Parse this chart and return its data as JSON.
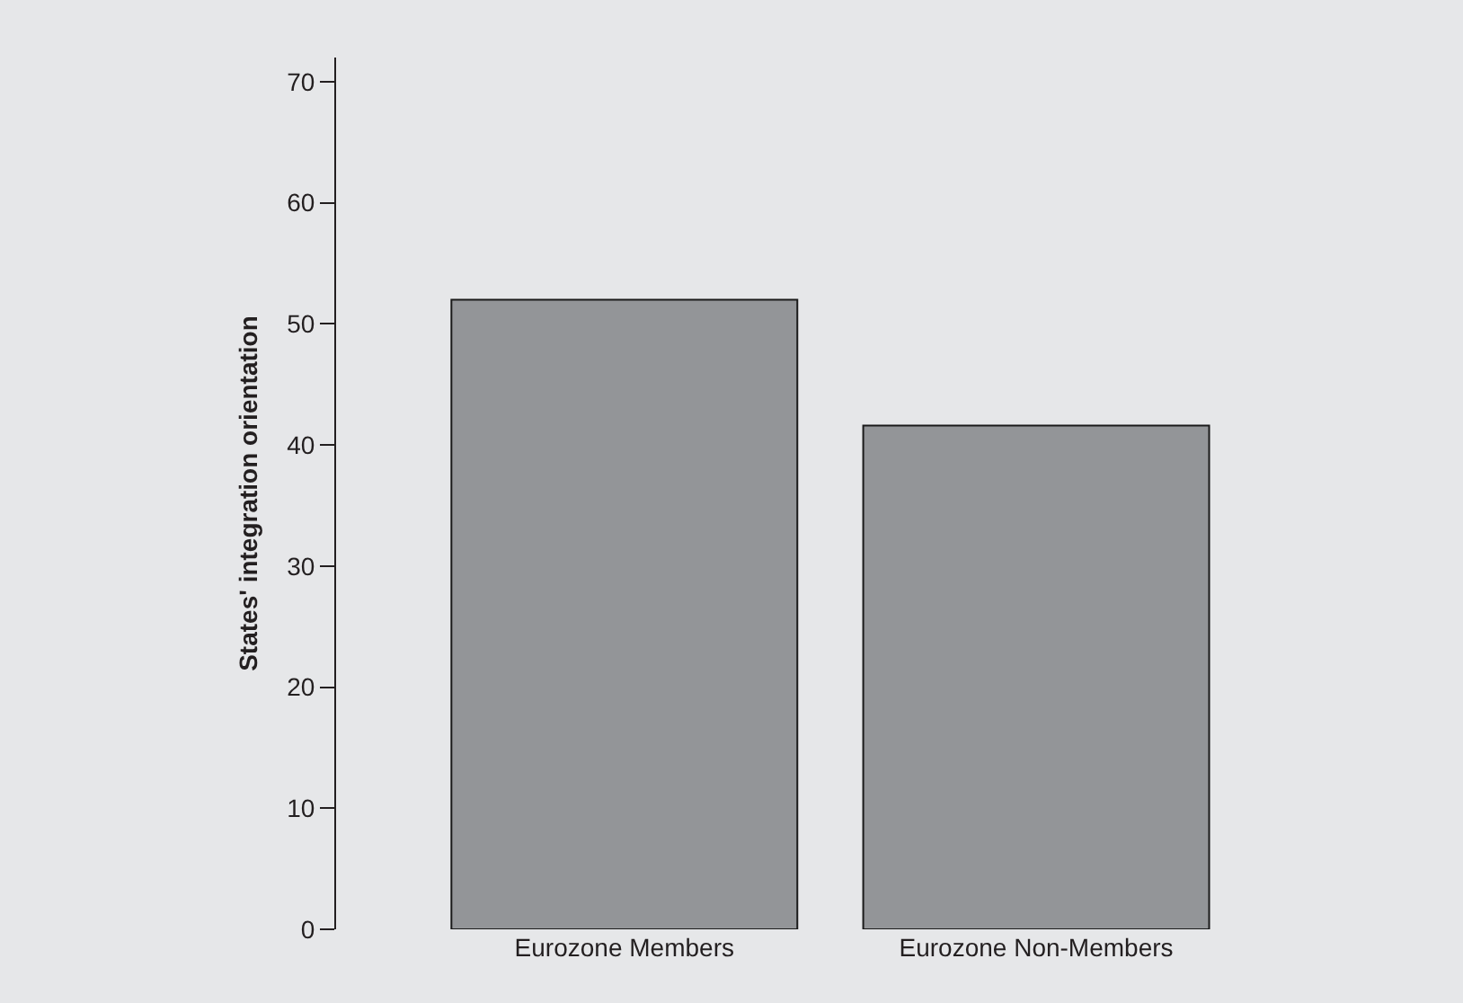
{
  "chart_data": {
    "type": "bar",
    "ylabel": "States' integration orientation",
    "categories": [
      "Eurozone Members",
      "Eurozone Non-Members"
    ],
    "values": [
      52,
      41.6
    ],
    "color": "#939598",
    "ylim": [
      0,
      72
    ],
    "yticks": [
      0,
      10,
      20,
      30,
      40,
      50,
      60,
      70
    ],
    "grid": false,
    "legend": false
  }
}
